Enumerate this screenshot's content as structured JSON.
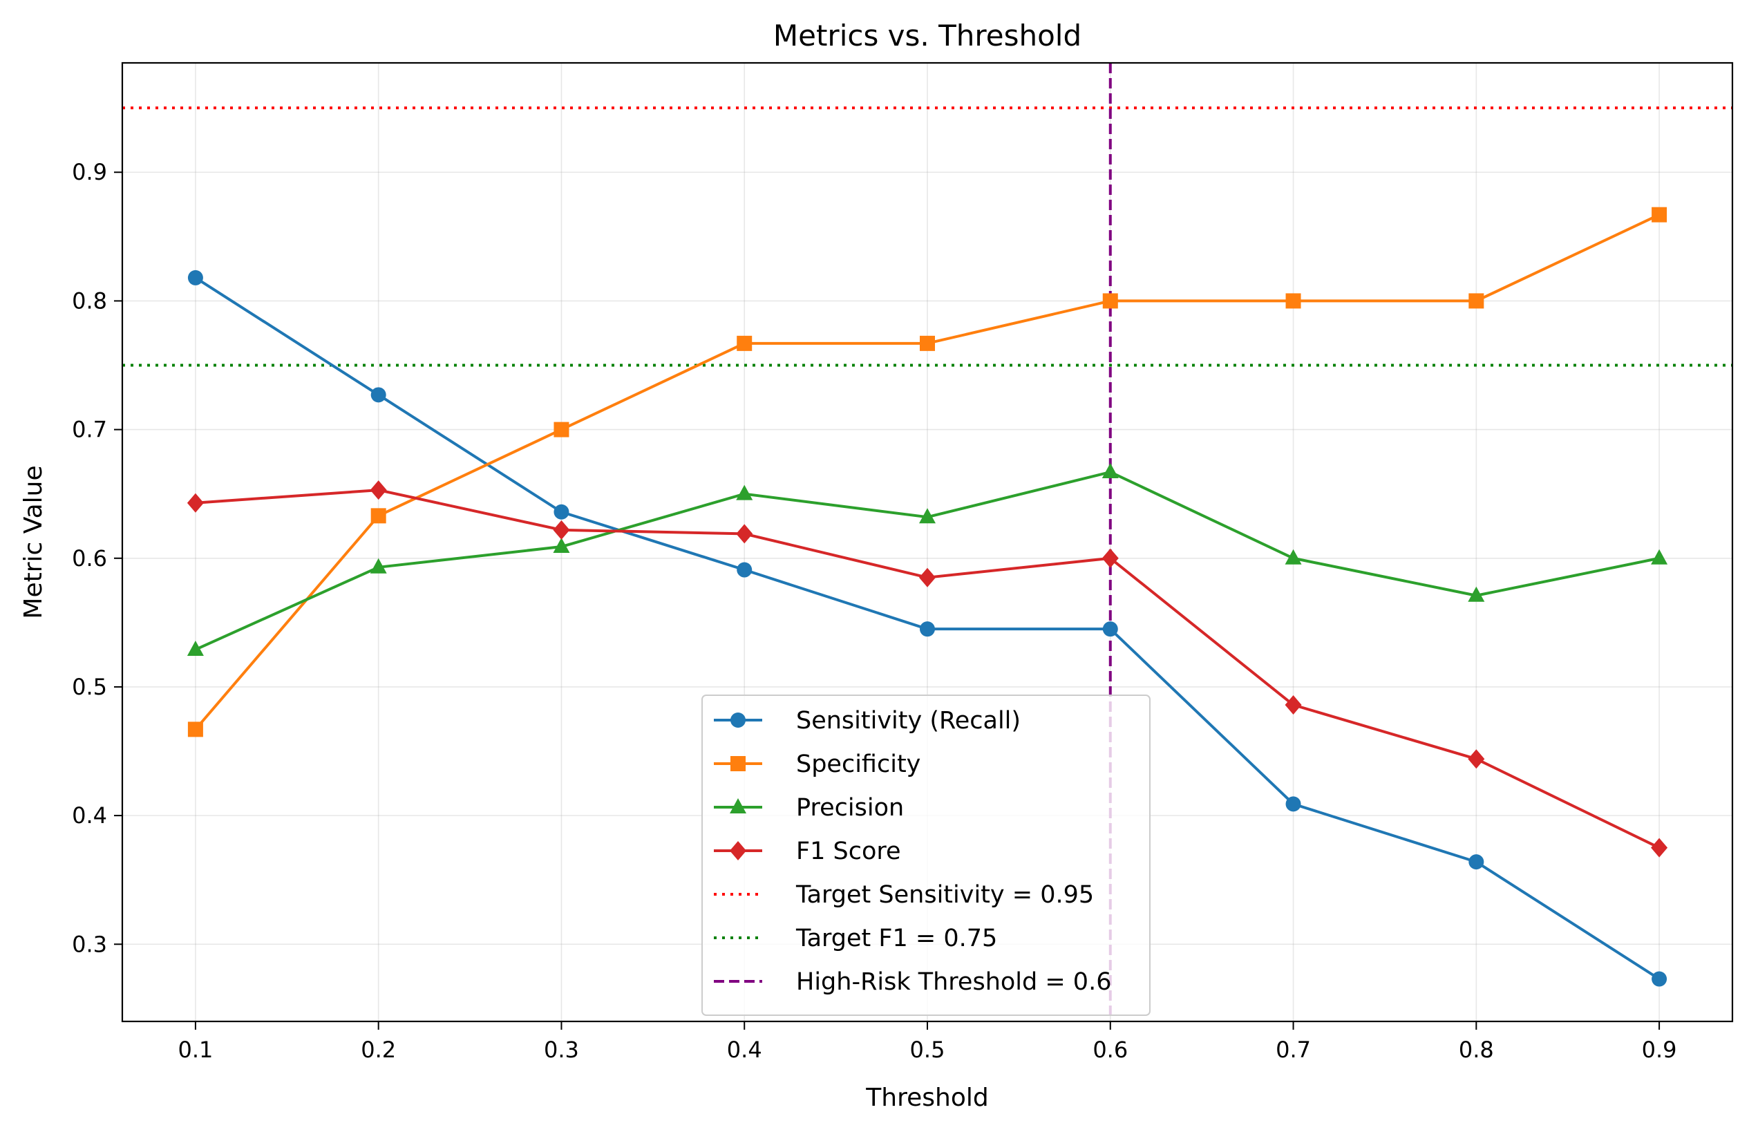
{
  "chart_data": {
    "type": "line",
    "title": "Metrics vs. Threshold",
    "xlabel": "Threshold",
    "ylabel": "Metric Value",
    "x": [
      0.1,
      0.2,
      0.3,
      0.4,
      0.5,
      0.6,
      0.7,
      0.8,
      0.9
    ],
    "xticks": [
      "0.1",
      "0.2",
      "0.3",
      "0.4",
      "0.5",
      "0.6",
      "0.7",
      "0.8",
      "0.9"
    ],
    "yticks": [
      "0.3",
      "0.4",
      "0.5",
      "0.6",
      "0.7",
      "0.8",
      "0.9"
    ],
    "xlim": [
      0.06,
      0.94
    ],
    "ylim": [
      0.24,
      0.985
    ],
    "grid": true,
    "legend_position": "lower-center",
    "series": [
      {
        "name": "Sensitivity (Recall)",
        "color": "#1f77b4",
        "marker": "circle",
        "values": [
          0.818,
          0.727,
          0.636,
          0.591,
          0.545,
          0.545,
          0.409,
          0.364,
          0.273
        ]
      },
      {
        "name": "Specificity",
        "color": "#ff7f0e",
        "marker": "square",
        "values": [
          0.467,
          0.633,
          0.7,
          0.767,
          0.767,
          0.8,
          0.8,
          0.8,
          0.867
        ]
      },
      {
        "name": "Precision",
        "color": "#2ca02c",
        "marker": "triangle",
        "values": [
          0.529,
          0.593,
          0.609,
          0.65,
          0.632,
          0.667,
          0.6,
          0.571,
          0.6
        ]
      },
      {
        "name": "F1 Score",
        "color": "#d62728",
        "marker": "diamond",
        "values": [
          0.643,
          0.653,
          0.622,
          0.619,
          0.585,
          0.6,
          0.486,
          0.444,
          0.375
        ]
      }
    ],
    "reference_lines": [
      {
        "name": "Target Sensitivity = 0.95",
        "orientation": "horizontal",
        "value": 0.95,
        "color": "#ff0000",
        "style": "dotted"
      },
      {
        "name": "Target F1 = 0.75",
        "orientation": "horizontal",
        "value": 0.75,
        "color": "#008000",
        "style": "dotted"
      },
      {
        "name": "High-Risk Threshold = 0.6",
        "orientation": "vertical",
        "value": 0.6,
        "color": "#800080",
        "style": "dashed"
      }
    ]
  }
}
